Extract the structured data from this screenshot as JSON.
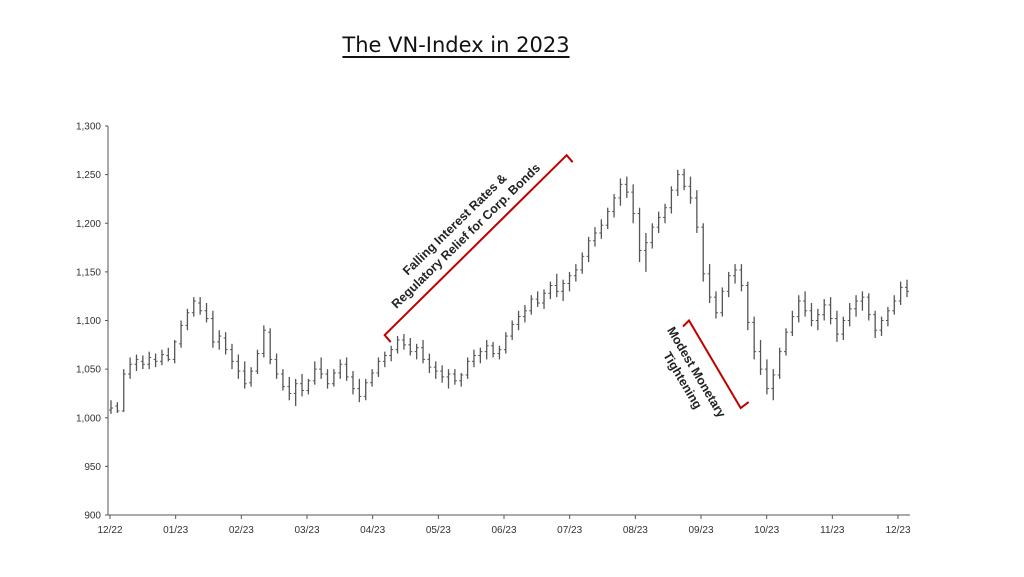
{
  "chart_data": {
    "type": "bar",
    "subtype": "ohlc",
    "title": "The VN-Index in 2023",
    "xlabel": "",
    "ylabel": "",
    "ylim": [
      900,
      1300
    ],
    "y_ticks": [
      "1,300",
      "1,250",
      "1,200",
      "1,150",
      "1,100",
      "1,050",
      "1,000",
      "950",
      "900"
    ],
    "x_ticks": [
      "12/22",
      "01/23",
      "02/23",
      "03/23",
      "04/23",
      "05/23",
      "06/23",
      "07/23",
      "08/23",
      "09/23",
      "10/23",
      "11/23",
      "12/23"
    ],
    "grid": false,
    "legend": "none",
    "bar_color": "#555555",
    "annotation_color": "#c00000",
    "annotations": [
      {
        "name": "falling-rates",
        "lines": [
          "Falling Interest Rates &",
          "Regulatory Relief for Corp. Bonds"
        ],
        "from": [
          "04/23",
          1085
        ],
        "to": [
          "07/23",
          1270
        ]
      },
      {
        "name": "monetary-tightening",
        "lines": [
          "Modest Monetary",
          "Tightening"
        ],
        "from": [
          "09/23",
          1100
        ],
        "to": [
          "10/23",
          1010
        ]
      }
    ],
    "series": [
      {
        "values": [
          [
            1008,
            1018,
            1004,
            1010
          ],
          [
            1012,
            1016,
            1005,
            1007
          ],
          [
            1007,
            1050,
            1006,
            1045
          ],
          [
            1045,
            1062,
            1040,
            1055
          ],
          [
            1055,
            1065,
            1048,
            1060
          ],
          [
            1058,
            1064,
            1050,
            1055
          ],
          [
            1055,
            1068,
            1050,
            1062
          ],
          [
            1060,
            1066,
            1052,
            1058
          ],
          [
            1058,
            1070,
            1054,
            1065
          ],
          [
            1064,
            1072,
            1058,
            1060
          ],
          [
            1060,
            1080,
            1056,
            1078
          ],
          [
            1076,
            1100,
            1072,
            1095
          ],
          [
            1095,
            1112,
            1090,
            1108
          ],
          [
            1108,
            1124,
            1104,
            1120
          ],
          [
            1118,
            1124,
            1106,
            1110
          ],
          [
            1110,
            1118,
            1098,
            1102
          ],
          [
            1102,
            1110,
            1072,
            1078
          ],
          [
            1078,
            1090,
            1070,
            1084
          ],
          [
            1082,
            1088,
            1065,
            1070
          ],
          [
            1070,
            1076,
            1050,
            1058
          ],
          [
            1058,
            1065,
            1040,
            1048
          ],
          [
            1048,
            1058,
            1030,
            1035
          ],
          [
            1036,
            1052,
            1032,
            1048
          ],
          [
            1048,
            1070,
            1045,
            1066
          ],
          [
            1066,
            1095,
            1062,
            1090
          ],
          [
            1088,
            1092,
            1055,
            1060
          ],
          [
            1060,
            1066,
            1040,
            1045
          ],
          [
            1045,
            1050,
            1028,
            1032
          ],
          [
            1032,
            1042,
            1018,
            1025
          ],
          [
            1025,
            1040,
            1012,
            1035
          ],
          [
            1035,
            1045,
            1022,
            1028
          ],
          [
            1028,
            1040,
            1024,
            1038
          ],
          [
            1038,
            1058,
            1034,
            1050
          ],
          [
            1050,
            1062,
            1040,
            1045
          ],
          [
            1045,
            1050,
            1030,
            1035
          ],
          [
            1035,
            1050,
            1032,
            1046
          ],
          [
            1046,
            1060,
            1040,
            1055
          ],
          [
            1055,
            1062,
            1038,
            1042
          ],
          [
            1042,
            1048,
            1024,
            1030
          ],
          [
            1030,
            1040,
            1016,
            1022
          ],
          [
            1022,
            1040,
            1018,
            1036
          ],
          [
            1036,
            1050,
            1032,
            1046
          ],
          [
            1046,
            1062,
            1042,
            1058
          ],
          [
            1058,
            1068,
            1052,
            1064
          ],
          [
            1064,
            1074,
            1058,
            1070
          ],
          [
            1070,
            1084,
            1066,
            1080
          ],
          [
            1080,
            1086,
            1070,
            1075
          ],
          [
            1075,
            1082,
            1064,
            1068
          ],
          [
            1068,
            1076,
            1060,
            1072
          ],
          [
            1072,
            1080,
            1056,
            1060
          ],
          [
            1060,
            1066,
            1046,
            1052
          ],
          [
            1052,
            1058,
            1040,
            1048
          ],
          [
            1048,
            1054,
            1036,
            1042
          ],
          [
            1042,
            1050,
            1030,
            1045
          ],
          [
            1045,
            1050,
            1034,
            1038
          ],
          [
            1038,
            1046,
            1032,
            1044
          ],
          [
            1044,
            1062,
            1040,
            1058
          ],
          [
            1058,
            1070,
            1052,
            1064
          ],
          [
            1064,
            1072,
            1056,
            1068
          ],
          [
            1068,
            1080,
            1060,
            1074
          ],
          [
            1074,
            1078,
            1062,
            1066
          ],
          [
            1066,
            1074,
            1060,
            1070
          ],
          [
            1070,
            1088,
            1066,
            1084
          ],
          [
            1084,
            1100,
            1080,
            1096
          ],
          [
            1096,
            1110,
            1090,
            1104
          ],
          [
            1104,
            1116,
            1098,
            1110
          ],
          [
            1110,
            1126,
            1106,
            1122
          ],
          [
            1122,
            1130,
            1114,
            1118
          ],
          [
            1118,
            1132,
            1112,
            1128
          ],
          [
            1128,
            1140,
            1122,
            1136
          ],
          [
            1136,
            1148,
            1124,
            1130
          ],
          [
            1130,
            1142,
            1120,
            1138
          ],
          [
            1138,
            1150,
            1130,
            1146
          ],
          [
            1146,
            1158,
            1140,
            1152
          ],
          [
            1152,
            1170,
            1148,
            1166
          ],
          [
            1166,
            1186,
            1160,
            1182
          ],
          [
            1182,
            1196,
            1176,
            1190
          ],
          [
            1190,
            1204,
            1184,
            1198
          ],
          [
            1198,
            1216,
            1194,
            1212
          ],
          [
            1212,
            1230,
            1206,
            1226
          ],
          [
            1226,
            1246,
            1218,
            1240
          ],
          [
            1240,
            1248,
            1226,
            1232
          ],
          [
            1232,
            1240,
            1200,
            1210
          ],
          [
            1210,
            1216,
            1160,
            1172
          ],
          [
            1172,
            1190,
            1150,
            1180
          ],
          [
            1180,
            1200,
            1174,
            1196
          ],
          [
            1196,
            1212,
            1190,
            1206
          ],
          [
            1206,
            1220,
            1200,
            1216
          ],
          [
            1216,
            1238,
            1210,
            1234
          ],
          [
            1234,
            1255,
            1228,
            1250
          ],
          [
            1250,
            1256,
            1234,
            1238
          ],
          [
            1238,
            1248,
            1220,
            1226
          ],
          [
            1226,
            1234,
            1190,
            1196
          ],
          [
            1196,
            1200,
            1140,
            1148
          ],
          [
            1148,
            1158,
            1118,
            1124
          ],
          [
            1124,
            1130,
            1102,
            1108
          ],
          [
            1108,
            1134,
            1104,
            1130
          ],
          [
            1130,
            1150,
            1124,
            1146
          ],
          [
            1146,
            1158,
            1138,
            1152
          ],
          [
            1152,
            1158,
            1130,
            1136
          ],
          [
            1136,
            1140,
            1090,
            1098
          ],
          [
            1098,
            1104,
            1060,
            1068
          ],
          [
            1068,
            1080,
            1044,
            1050
          ],
          [
            1050,
            1060,
            1024,
            1030
          ],
          [
            1030,
            1050,
            1018,
            1044
          ],
          [
            1044,
            1072,
            1040,
            1068
          ],
          [
            1068,
            1092,
            1064,
            1088
          ],
          [
            1088,
            1110,
            1084,
            1104
          ],
          [
            1104,
            1126,
            1098,
            1120
          ],
          [
            1120,
            1130,
            1104,
            1110
          ],
          [
            1110,
            1118,
            1094,
            1100
          ],
          [
            1100,
            1112,
            1090,
            1106
          ],
          [
            1106,
            1122,
            1100,
            1116
          ],
          [
            1116,
            1124,
            1096,
            1102
          ],
          [
            1102,
            1110,
            1078,
            1086
          ],
          [
            1086,
            1104,
            1080,
            1100
          ],
          [
            1100,
            1118,
            1094,
            1112
          ],
          [
            1112,
            1126,
            1104,
            1120
          ],
          [
            1120,
            1130,
            1110,
            1124
          ],
          [
            1124,
            1128,
            1100,
            1106
          ],
          [
            1106,
            1110,
            1082,
            1090
          ],
          [
            1090,
            1104,
            1084,
            1100
          ],
          [
            1100,
            1114,
            1094,
            1110
          ],
          [
            1110,
            1126,
            1106,
            1120
          ],
          [
            1120,
            1140,
            1116,
            1134
          ],
          [
            1134,
            1142,
            1124,
            1130
          ]
        ]
      }
    ]
  }
}
